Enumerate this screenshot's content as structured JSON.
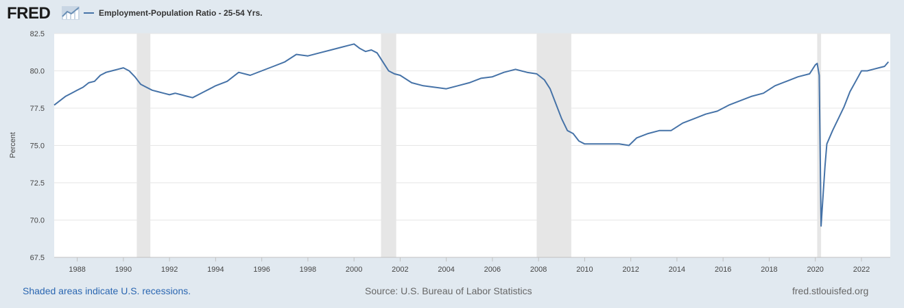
{
  "logo": {
    "text": "FRED",
    "icon": "trend-line-icon"
  },
  "legend": {
    "label": "Employment-Population Ratio - 25-54 Yrs.",
    "color": "#4572a7"
  },
  "footer": {
    "recessions_note": "Shaded areas indicate U.S. recessions.",
    "source": "Source: U.S. Bureau of Labor Statistics",
    "site": "fred.stlouisfed.org"
  },
  "colors": {
    "background": "#e1e9f0",
    "plot_background": "#ffffff",
    "recession_shade": "#e6e6e6",
    "grid": "#e6e6e6",
    "series": "#4572a7",
    "link": "#2a66b1"
  },
  "chart_data": {
    "type": "line",
    "ylabel": "Percent",
    "xlim": [
      1987.0,
      2023.25
    ],
    "ylim": [
      67.5,
      82.5
    ],
    "yticks": [
      "67.5",
      "70.0",
      "72.5",
      "75.0",
      "77.5",
      "80.0",
      "82.5"
    ],
    "xticks": [
      "1988",
      "1990",
      "1992",
      "1994",
      "1996",
      "1998",
      "2000",
      "2002",
      "2004",
      "2006",
      "2008",
      "2010",
      "2012",
      "2014",
      "2016",
      "2018",
      "2020",
      "2022"
    ],
    "grid": true,
    "legend_position": "top-left",
    "recessions": [
      [
        1990.58,
        1991.17
      ],
      [
        2001.17,
        2001.83
      ],
      [
        2007.92,
        2009.42
      ],
      [
        2020.08,
        2020.25
      ]
    ],
    "series": [
      {
        "name": "Employment-Population Ratio - 25-54 Yrs.",
        "x": [
          1987.0,
          1987.25,
          1987.5,
          1987.75,
          1988.0,
          1988.25,
          1988.5,
          1988.75,
          1989.0,
          1989.25,
          1989.5,
          1989.75,
          1990.0,
          1990.25,
          1990.5,
          1990.75,
          1991.0,
          1991.25,
          1991.5,
          1991.75,
          1992.0,
          1992.25,
          1992.5,
          1992.75,
          1993.0,
          1993.25,
          1993.5,
          1993.75,
          1994.0,
          1994.5,
          1995.0,
          1995.5,
          1996.0,
          1996.5,
          1997.0,
          1997.5,
          1998.0,
          1998.5,
          1999.0,
          1999.5,
          2000.0,
          2000.25,
          2000.5,
          2000.75,
          2001.0,
          2001.25,
          2001.5,
          2001.75,
          2002.0,
          2002.5,
          2003.0,
          2003.5,
          2004.0,
          2004.5,
          2005.0,
          2005.5,
          2006.0,
          2006.5,
          2007.0,
          2007.5,
          2007.92,
          2008.25,
          2008.5,
          2008.75,
          2009.0,
          2009.25,
          2009.5,
          2009.75,
          2010.0,
          2010.5,
          2011.0,
          2011.5,
          2011.92,
          2012.25,
          2012.75,
          2013.25,
          2013.75,
          2014.25,
          2014.75,
          2015.25,
          2015.75,
          2016.25,
          2016.75,
          2017.25,
          2017.75,
          2018.25,
          2018.75,
          2019.25,
          2019.75,
          2020.0,
          2020.08,
          2020.17,
          2020.25,
          2020.33,
          2020.42,
          2020.5,
          2020.75,
          2021.0,
          2021.25,
          2021.5,
          2021.75,
          2022.0,
          2022.25,
          2022.5,
          2022.75,
          2023.0,
          2023.17
        ],
        "values": [
          77.7,
          78.0,
          78.3,
          78.5,
          78.7,
          78.9,
          79.2,
          79.3,
          79.7,
          79.9,
          80.0,
          80.1,
          80.2,
          80.0,
          79.6,
          79.1,
          78.9,
          78.7,
          78.6,
          78.5,
          78.4,
          78.5,
          78.4,
          78.3,
          78.2,
          78.4,
          78.6,
          78.8,
          79.0,
          79.3,
          79.9,
          79.7,
          80.0,
          80.3,
          80.6,
          81.1,
          81.0,
          81.2,
          81.4,
          81.6,
          81.8,
          81.5,
          81.3,
          81.4,
          81.2,
          80.6,
          80.0,
          79.8,
          79.7,
          79.2,
          79.0,
          78.9,
          78.8,
          79.0,
          79.2,
          79.5,
          79.6,
          79.9,
          80.1,
          79.9,
          79.8,
          79.4,
          78.8,
          77.8,
          76.8,
          76.0,
          75.8,
          75.3,
          75.1,
          75.1,
          75.1,
          75.1,
          75.0,
          75.5,
          75.8,
          76.0,
          76.0,
          76.5,
          76.8,
          77.1,
          77.3,
          77.7,
          78.0,
          78.3,
          78.5,
          79.0,
          79.3,
          79.6,
          79.8,
          80.4,
          80.5,
          79.7,
          69.6,
          71.5,
          73.6,
          75.1,
          76.0,
          76.8,
          77.6,
          78.6,
          79.3,
          80.0,
          80.0,
          80.1,
          80.2,
          80.3,
          80.6
        ]
      }
    ]
  }
}
